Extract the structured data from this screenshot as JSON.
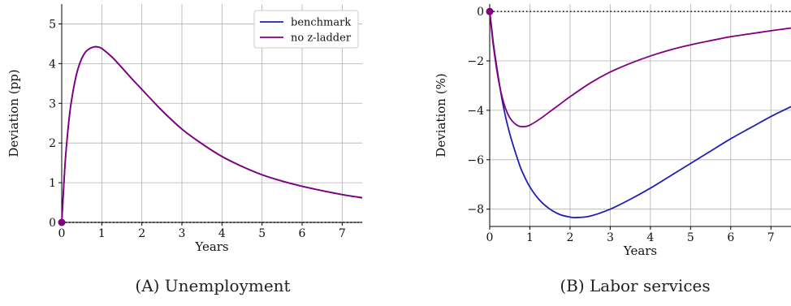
{
  "chart_data": [
    {
      "type": "line",
      "caption": "(A) Unemployment",
      "xlabel": "Years",
      "ylabel": "Deviation (pp)",
      "xlim": [
        0,
        7.5
      ],
      "ylim": [
        0,
        5.5
      ],
      "xticks": [
        0,
        1,
        2,
        3,
        4,
        5,
        6,
        7
      ],
      "yticks": [
        0,
        1,
        2,
        3,
        4,
        5
      ],
      "grid": true,
      "legend": {
        "position": "top-right",
        "entries": [
          "benchmark",
          "no z-ladder"
        ]
      },
      "series": [
        {
          "name": "benchmark",
          "color": "#1f1fb4",
          "x": [
            0,
            0.05,
            0.1,
            0.2,
            0.3,
            0.4,
            0.5,
            0.6,
            0.7,
            0.8,
            0.9,
            1.0,
            1.25,
            1.5,
            1.75,
            2.0,
            2.5,
            3.0,
            3.5,
            4.0,
            4.5,
            5.0,
            5.5,
            6.0,
            6.5,
            7.0,
            7.5
          ],
          "y": [
            0,
            0.9,
            1.7,
            2.75,
            3.4,
            3.85,
            4.13,
            4.3,
            4.38,
            4.42,
            4.42,
            4.38,
            4.17,
            3.9,
            3.62,
            3.35,
            2.82,
            2.35,
            1.98,
            1.66,
            1.41,
            1.2,
            1.04,
            0.91,
            0.8,
            0.7,
            0.62
          ]
        },
        {
          "name": "no z-ladder",
          "color": "#800080",
          "x": [
            0,
            0.05,
            0.1,
            0.2,
            0.3,
            0.4,
            0.5,
            0.6,
            0.7,
            0.8,
            0.9,
            1.0,
            1.25,
            1.5,
            1.75,
            2.0,
            2.5,
            3.0,
            3.5,
            4.0,
            4.5,
            5.0,
            5.5,
            6.0,
            6.5,
            7.0,
            7.5
          ],
          "y": [
            0,
            0.9,
            1.7,
            2.75,
            3.4,
            3.85,
            4.13,
            4.3,
            4.38,
            4.42,
            4.42,
            4.38,
            4.17,
            3.9,
            3.62,
            3.35,
            2.82,
            2.35,
            1.98,
            1.66,
            1.41,
            1.2,
            1.04,
            0.91,
            0.8,
            0.7,
            0.62
          ]
        }
      ],
      "reference_line": {
        "y": 0,
        "style": "dotted"
      }
    },
    {
      "type": "line",
      "caption": "(B) Labor services",
      "xlabel": "Years",
      "ylabel": "Deviation (%)",
      "xlim": [
        0,
        7.5
      ],
      "ylim": [
        -8.7,
        0.3
      ],
      "xticks": [
        0,
        1,
        2,
        3,
        4,
        5,
        6,
        7
      ],
      "yticks": [
        0,
        -2,
        -4,
        -6,
        -8
      ],
      "ytick_labels": [
        "0",
        "−2",
        "−4",
        "−6",
        "−8"
      ],
      "grid": true,
      "series": [
        {
          "name": "benchmark",
          "color": "#1f1fb4",
          "x": [
            0,
            0.05,
            0.1,
            0.2,
            0.3,
            0.4,
            0.5,
            0.6,
            0.7,
            0.8,
            1.0,
            1.25,
            1.5,
            1.75,
            2.0,
            2.15,
            2.5,
            3.0,
            3.5,
            4.0,
            4.5,
            5.0,
            5.5,
            6.0,
            6.5,
            7.0,
            7.5
          ],
          "y": [
            0,
            -0.7,
            -1.4,
            -2.5,
            -3.5,
            -4.3,
            -4.95,
            -5.5,
            -6.0,
            -6.45,
            -7.1,
            -7.65,
            -8.0,
            -8.22,
            -8.32,
            -8.34,
            -8.28,
            -8.0,
            -7.6,
            -7.15,
            -6.65,
            -6.15,
            -5.65,
            -5.15,
            -4.7,
            -4.25,
            -3.85
          ]
        },
        {
          "name": "no z-ladder",
          "color": "#800080",
          "x": [
            0,
            0.05,
            0.1,
            0.2,
            0.3,
            0.4,
            0.5,
            0.6,
            0.7,
            0.8,
            0.9,
            1.0,
            1.25,
            1.5,
            1.75,
            2.0,
            2.5,
            3.0,
            3.5,
            4.0,
            4.5,
            5.0,
            5.5,
            6.0,
            6.5,
            7.0,
            7.5
          ],
          "y": [
            0,
            -0.8,
            -1.5,
            -2.6,
            -3.4,
            -3.95,
            -4.3,
            -4.5,
            -4.62,
            -4.66,
            -4.65,
            -4.6,
            -4.35,
            -4.05,
            -3.75,
            -3.45,
            -2.9,
            -2.45,
            -2.1,
            -1.8,
            -1.55,
            -1.35,
            -1.18,
            -1.02,
            -0.9,
            -0.78,
            -0.67
          ]
        }
      ],
      "reference_line": {
        "y": 0,
        "style": "dotted"
      }
    }
  ]
}
